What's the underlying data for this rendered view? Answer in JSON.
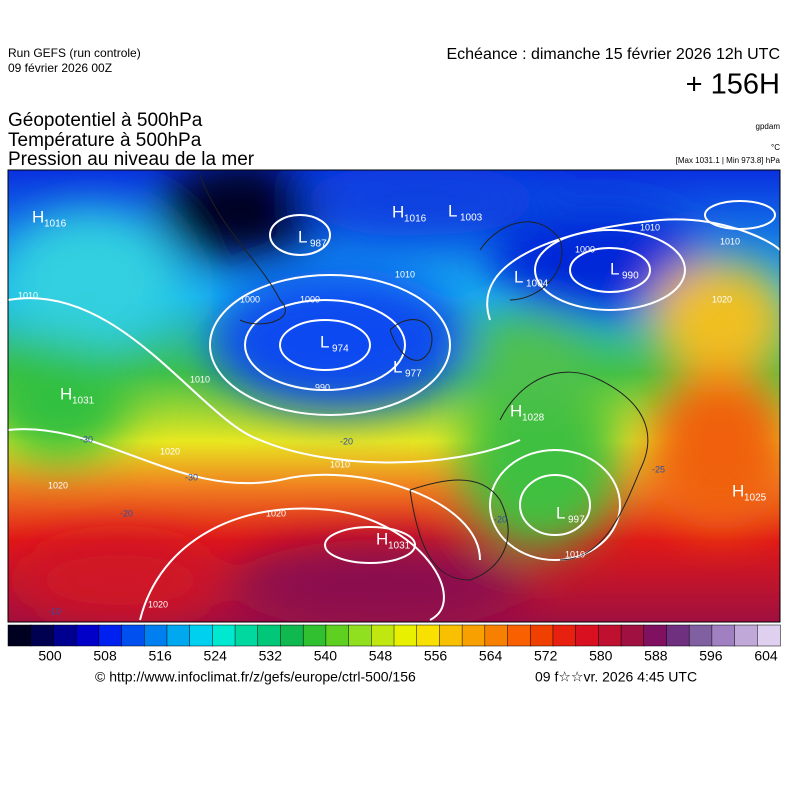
{
  "header": {
    "run_title": "Run GEFS (run controle)",
    "run_date": "09 février 2026 00Z",
    "valid_time": "Echéance : dimanche 15 février 2026 12h UTC",
    "lead_time": "+ 156H"
  },
  "fields": [
    "Géopotentiel à 500hPa",
    "Température à 500hPa",
    "Pression au niveau de la mer"
  ],
  "units": {
    "geopotential": "gpdam",
    "temperature": "°C",
    "pressure": "[Max 1031.1 | Min 973.8] hPa"
  },
  "map": {
    "centers": [
      {
        "type": "H",
        "value": "1016"
      },
      {
        "type": "L",
        "value": "987"
      },
      {
        "type": "H",
        "value": "1016"
      },
      {
        "type": "L",
        "value": "1003"
      },
      {
        "type": "L",
        "value": "1004"
      },
      {
        "type": "L",
        "value": "990"
      },
      {
        "type": "L",
        "value": "974"
      },
      {
        "type": "L",
        "value": "977"
      },
      {
        "type": "H",
        "value": "1031"
      },
      {
        "type": "H",
        "value": "1028"
      },
      {
        "type": "L",
        "value": "997"
      },
      {
        "type": "H",
        "value": "1031"
      },
      {
        "type": "H",
        "value": "1025"
      }
    ],
    "isobar_labels": [
      "1010",
      "1000",
      "990",
      "1010",
      "1000",
      "1010",
      "1020",
      "1020",
      "1010",
      "1020",
      "1010",
      "1020",
      "1010",
      "1020",
      "1000",
      "1010"
    ],
    "isotherm_labels": [
      "-30",
      "-20",
      "-30",
      "-20",
      "-10",
      "-20",
      "-25"
    ]
  },
  "colorbar": {
    "labels": [
      "500",
      "508",
      "516",
      "524",
      "532",
      "540",
      "548",
      "556",
      "564",
      "572",
      "580",
      "588",
      "596",
      "604"
    ]
  },
  "footer": {
    "source": "© http://www.infoclimat.fr/z/gefs/europe/ctrl-500/156",
    "generated": "09 f☆☆vr. 2026  4:45 UTC"
  }
}
